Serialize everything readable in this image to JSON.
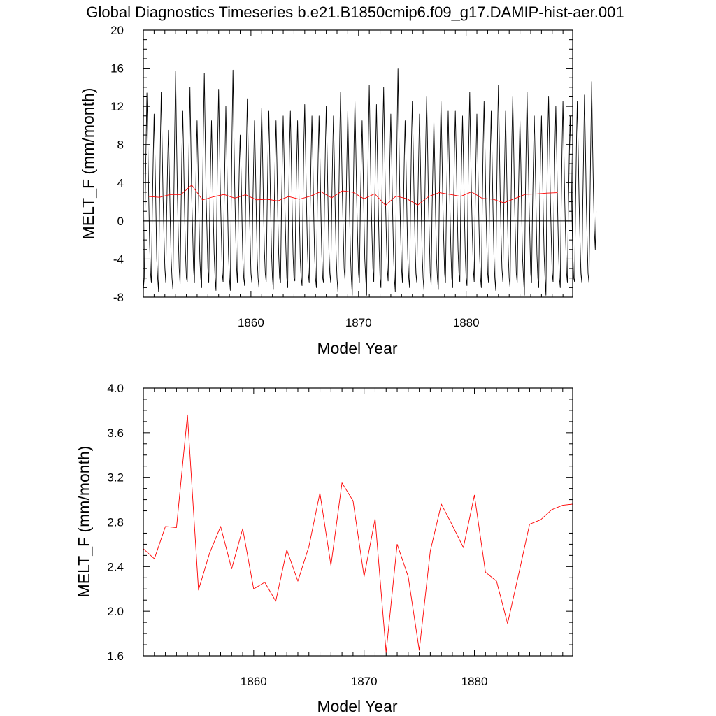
{
  "title": "Global Diagnostics Timeseries b.e21.B1850cmip6.f09_g17.DAMIP-hist-aer.001",
  "chart_data": [
    {
      "type": "line",
      "xlabel": "Model Year",
      "ylabel": "MELT_F (mm/month)",
      "xlim": [
        1850,
        1889.9
      ],
      "ylim": [
        -8,
        20
      ],
      "xticks": [
        "1860",
        "1870",
        "1880"
      ],
      "yticks": [
        "-8",
        "-4",
        "0",
        "4",
        "8",
        "12",
        "16",
        "20"
      ],
      "zero_line": true,
      "series": [
        {
          "color": "#000000",
          "x_start": 1850.0,
          "x_step": 0.08333,
          "values": [
            -7.2,
            -6.0,
            1.5,
            7.5,
            13.4,
            8.5,
            2.5,
            -2.5,
            -5.5,
            -6.5,
            1.0,
            6.5,
            11.2,
            6.5,
            1.0,
            -4.0,
            -6.0,
            -7.4,
            1.5,
            8.5,
            13.5,
            8.0,
            2.5,
            -1.5,
            -5.0,
            -6.5,
            0.5,
            5.5,
            9.5,
            5.0,
            0.0,
            -4.0,
            -6.0,
            -7.2,
            2.0,
            9.5,
            15.7,
            9.0,
            3.0,
            -1.5,
            -5.0,
            -6.6,
            1.0,
            7.0,
            11.5,
            6.5,
            1.0,
            -3.5,
            -6.0,
            -6.4,
            1.5,
            8.0,
            14.0,
            8.0,
            2.5,
            -1.0,
            -5.0,
            -6.5,
            0.5,
            6.5,
            10.5,
            6.0,
            0.5,
            -4.0,
            -6.0,
            -7.0,
            2.0,
            9.5,
            15.5,
            9.0,
            2.5,
            -1.0,
            -5.0,
            -6.5,
            0.5,
            6.0,
            10.5,
            6.0,
            0.5,
            -3.5,
            -6.0,
            -7.3,
            1.5,
            8.5,
            13.8,
            8.0,
            2.5,
            -1.5,
            -5.5,
            -6.4,
            1.0,
            6.5,
            12.0,
            7.0,
            1.5,
            -3.5,
            -6.0,
            -7.3,
            2.0,
            9.5,
            15.8,
            9.0,
            3.0,
            -1.5,
            -5.0,
            -6.5,
            0.5,
            5.5,
            9.0,
            5.0,
            0.0,
            -4.0,
            -6.0,
            -6.8,
            1.5,
            8.0,
            12.8,
            7.5,
            2.0,
            -1.5,
            -5.5,
            -6.5,
            1.0,
            6.0,
            10.5,
            6.0,
            0.5,
            -4.0,
            -6.0,
            -7.0,
            1.5,
            7.5,
            11.8,
            7.0,
            1.5,
            -3.0,
            -5.5,
            -6.4,
            1.0,
            6.5,
            11.5,
            6.5,
            1.0,
            -3.5,
            -6.0,
            -7.2,
            1.0,
            6.5,
            10.5,
            6.0,
            0.5,
            -3.5,
            -6.0,
            -6.5,
            1.0,
            6.5,
            11.0,
            6.5,
            1.0,
            -3.0,
            -6.0,
            -7.0,
            1.5,
            7.5,
            11.5,
            6.5,
            1.0,
            -3.5,
            -6.0,
            -6.3,
            1.0,
            6.0,
            10.5,
            6.0,
            0.5,
            -4.0,
            -6.0,
            -6.8,
            1.5,
            8.0,
            12.2,
            7.0,
            1.5,
            -3.0,
            -5.5,
            -6.5,
            1.0,
            6.5,
            11.0,
            6.5,
            1.0,
            -3.5,
            -6.0,
            -7.0,
            1.5,
            7.0,
            11.0,
            6.5,
            1.0,
            -3.5,
            -6.0,
            -6.5,
            1.5,
            7.5,
            12.0,
            7.0,
            1.5,
            -3.0,
            -5.5,
            -6.5,
            1.0,
            6.5,
            11.0,
            6.5,
            1.0,
            -3.5,
            -6.0,
            -7.4,
            2.0,
            8.5,
            13.5,
            8.0,
            2.5,
            -1.5,
            -5.0,
            -6.2,
            1.0,
            6.5,
            11.5,
            6.5,
            1.0,
            -3.5,
            -6.0,
            -7.8,
            1.5,
            8.0,
            12.5,
            7.5,
            2.0,
            -2.0,
            -5.5,
            -6.5,
            1.0,
            6.0,
            10.5,
            6.0,
            0.5,
            -4.0,
            -6.0,
            -7.8,
            2.0,
            9.0,
            14.2,
            8.5,
            2.5,
            -1.5,
            -5.0,
            -6.4,
            1.0,
            7.0,
            12.2,
            7.0,
            1.5,
            -3.0,
            -6.0,
            -7.0,
            2.0,
            9.0,
            14.0,
            8.5,
            2.5,
            -1.5,
            -5.0,
            -6.3,
            1.0,
            6.5,
            11.2,
            6.5,
            1.0,
            -3.5,
            -6.0,
            -7.4,
            2.0,
            9.5,
            16.0,
            9.0,
            3.0,
            -1.5,
            -5.0,
            -6.5,
            1.0,
            6.5,
            10.5,
            6.0,
            0.5,
            -4.0,
            -6.0,
            -7.0,
            1.5,
            8.0,
            12.5,
            7.5,
            2.0,
            -2.0,
            -5.5,
            -6.5,
            1.0,
            6.5,
            11.2,
            6.5,
            1.0,
            -3.5,
            -6.0,
            -7.3,
            2.0,
            8.5,
            13.0,
            8.0,
            2.0,
            -2.0,
            -5.5,
            -6.7,
            1.0,
            6.0,
            10.5,
            6.0,
            0.5,
            -4.0,
            -6.0,
            -7.2,
            1.5,
            7.5,
            12.5,
            7.5,
            2.0,
            -2.0,
            -5.5,
            -6.5,
            1.0,
            6.5,
            11.5,
            6.5,
            1.0,
            -3.0,
            -6.0,
            -7.0,
            1.5,
            7.5,
            11.5,
            7.0,
            1.5,
            -3.0,
            -5.5,
            -6.4,
            1.0,
            6.5,
            11.0,
            6.5,
            1.0,
            -3.5,
            -6.0,
            -6.8,
            2.0,
            8.5,
            13.5,
            8.0,
            2.5,
            -1.5,
            -5.0,
            -6.4,
            1.0,
            6.5,
            11.2,
            6.5,
            1.0,
            -3.5,
            -6.0,
            -7.0,
            1.5,
            8.0,
            12.5,
            7.5,
            2.0,
            -2.0,
            -5.5,
            -6.5,
            1.0,
            7.0,
            11.5,
            6.5,
            1.0,
            -3.5,
            -6.0,
            -7.3,
            2.0,
            9.0,
            14.2,
            8.5,
            2.5,
            -1.5,
            -5.0,
            -6.4,
            1.0,
            6.5,
            11.5,
            6.5,
            1.0,
            -3.5,
            -6.0,
            -7.0,
            1.5,
            8.5,
            13.0,
            8.0,
            2.0,
            -2.0,
            -5.5,
            -6.5,
            1.0,
            6.0,
            10.5,
            6.0,
            0.5,
            -4.0,
            -6.0,
            -7.8,
            2.0,
            8.5,
            13.5,
            8.0,
            2.5,
            -1.5,
            -5.5,
            -6.5,
            1.0,
            6.0,
            11.0,
            6.5,
            1.0,
            -3.5,
            -6.0,
            -7.0,
            1.5,
            7.0,
            11.0,
            6.5,
            1.0,
            -3.5,
            -6.0,
            -7.8,
            2.0,
            8.5,
            13.0,
            8.0,
            2.0,
            -2.0,
            -5.5,
            -6.4,
            1.5,
            7.5,
            12.0,
            7.0,
            1.5,
            -3.0,
            -6.0,
            -7.0,
            1.5,
            7.5,
            12.5,
            7.5,
            2.0,
            -2.0,
            -5.5,
            -6.5,
            1.0,
            6.5,
            11.0,
            6.5,
            1.0,
            -3.5,
            -6.0,
            -6.4,
            1.5,
            8.0,
            12.5,
            7.5,
            2.0,
            -2.0,
            -5.5,
            -6.5,
            1.0,
            7.0,
            13.2,
            8.0,
            2.0,
            -2.0,
            -5.5,
            -6.5,
            1.0,
            8.5,
            14.6,
            8.5,
            3.0,
            -1.0,
            -3.0,
            1.0
          ]
        },
        {
          "color": "#ff0000",
          "x": [
            1850.5,
            1851.5,
            1852.5,
            1853.5,
            1854.5,
            1855.5,
            1856.5,
            1857.5,
            1858.5,
            1859.5,
            1860.5,
            1861.5,
            1862.5,
            1863.5,
            1864.5,
            1865.5,
            1866.5,
            1867.5,
            1868.5,
            1869.5,
            1870.5,
            1871.5,
            1872.5,
            1873.5,
            1874.5,
            1875.5,
            1876.5,
            1877.5,
            1878.5,
            1879.5,
            1880.5,
            1881.5,
            1882.5,
            1883.5,
            1884.5,
            1885.5,
            1886.5,
            1887.5,
            1888.5
          ],
          "values": [
            2.55,
            2.47,
            2.76,
            2.75,
            3.76,
            2.19,
            2.52,
            2.76,
            2.38,
            2.74,
            2.2,
            2.26,
            2.09,
            2.55,
            2.27,
            2.58,
            3.06,
            2.41,
            3.15,
            2.99,
            2.31,
            2.83,
            1.63,
            2.6,
            2.31,
            1.65,
            2.54,
            2.96,
            2.77,
            2.57,
            3.04,
            2.35,
            2.27,
            1.89,
            2.33,
            2.78,
            2.82,
            2.91,
            2.95
          ]
        }
      ]
    },
    {
      "type": "line",
      "xlabel": "Model Year",
      "ylabel": "MELT_F (mm/month)",
      "xlim": [
        1850,
        1888.9
      ],
      "ylim": [
        1.6,
        4.0
      ],
      "xticks": [
        "1860",
        "1870",
        "1880"
      ],
      "yticks": [
        "1.6",
        "2.0",
        "2.4",
        "2.8",
        "3.2",
        "3.6",
        "4.0"
      ],
      "series": [
        {
          "color": "#ff0000",
          "x": [
            1850.0,
            1851.0,
            1852.0,
            1853.0,
            1854.0,
            1855.0,
            1856.0,
            1857.0,
            1858.0,
            1859.0,
            1860.0,
            1861.0,
            1862.0,
            1863.0,
            1864.0,
            1865.0,
            1866.0,
            1867.0,
            1868.0,
            1869.0,
            1870.0,
            1871.0,
            1872.0,
            1873.0,
            1874.0,
            1875.0,
            1876.0,
            1877.0,
            1878.0,
            1879.0,
            1880.0,
            1881.0,
            1882.0,
            1883.0,
            1884.0,
            1885.0,
            1886.0,
            1887.0,
            1888.0,
            1888.9
          ],
          "values": [
            2.56,
            2.47,
            2.76,
            2.75,
            3.76,
            2.19,
            2.52,
            2.76,
            2.38,
            2.74,
            2.2,
            2.26,
            2.09,
            2.55,
            2.27,
            2.58,
            3.06,
            2.41,
            3.15,
            2.99,
            2.31,
            2.83,
            1.63,
            2.6,
            2.31,
            1.65,
            2.54,
            2.96,
            2.77,
            2.57,
            3.04,
            2.35,
            2.27,
            1.89,
            2.33,
            2.78,
            2.82,
            2.91,
            2.95,
            2.96
          ]
        }
      ]
    }
  ]
}
